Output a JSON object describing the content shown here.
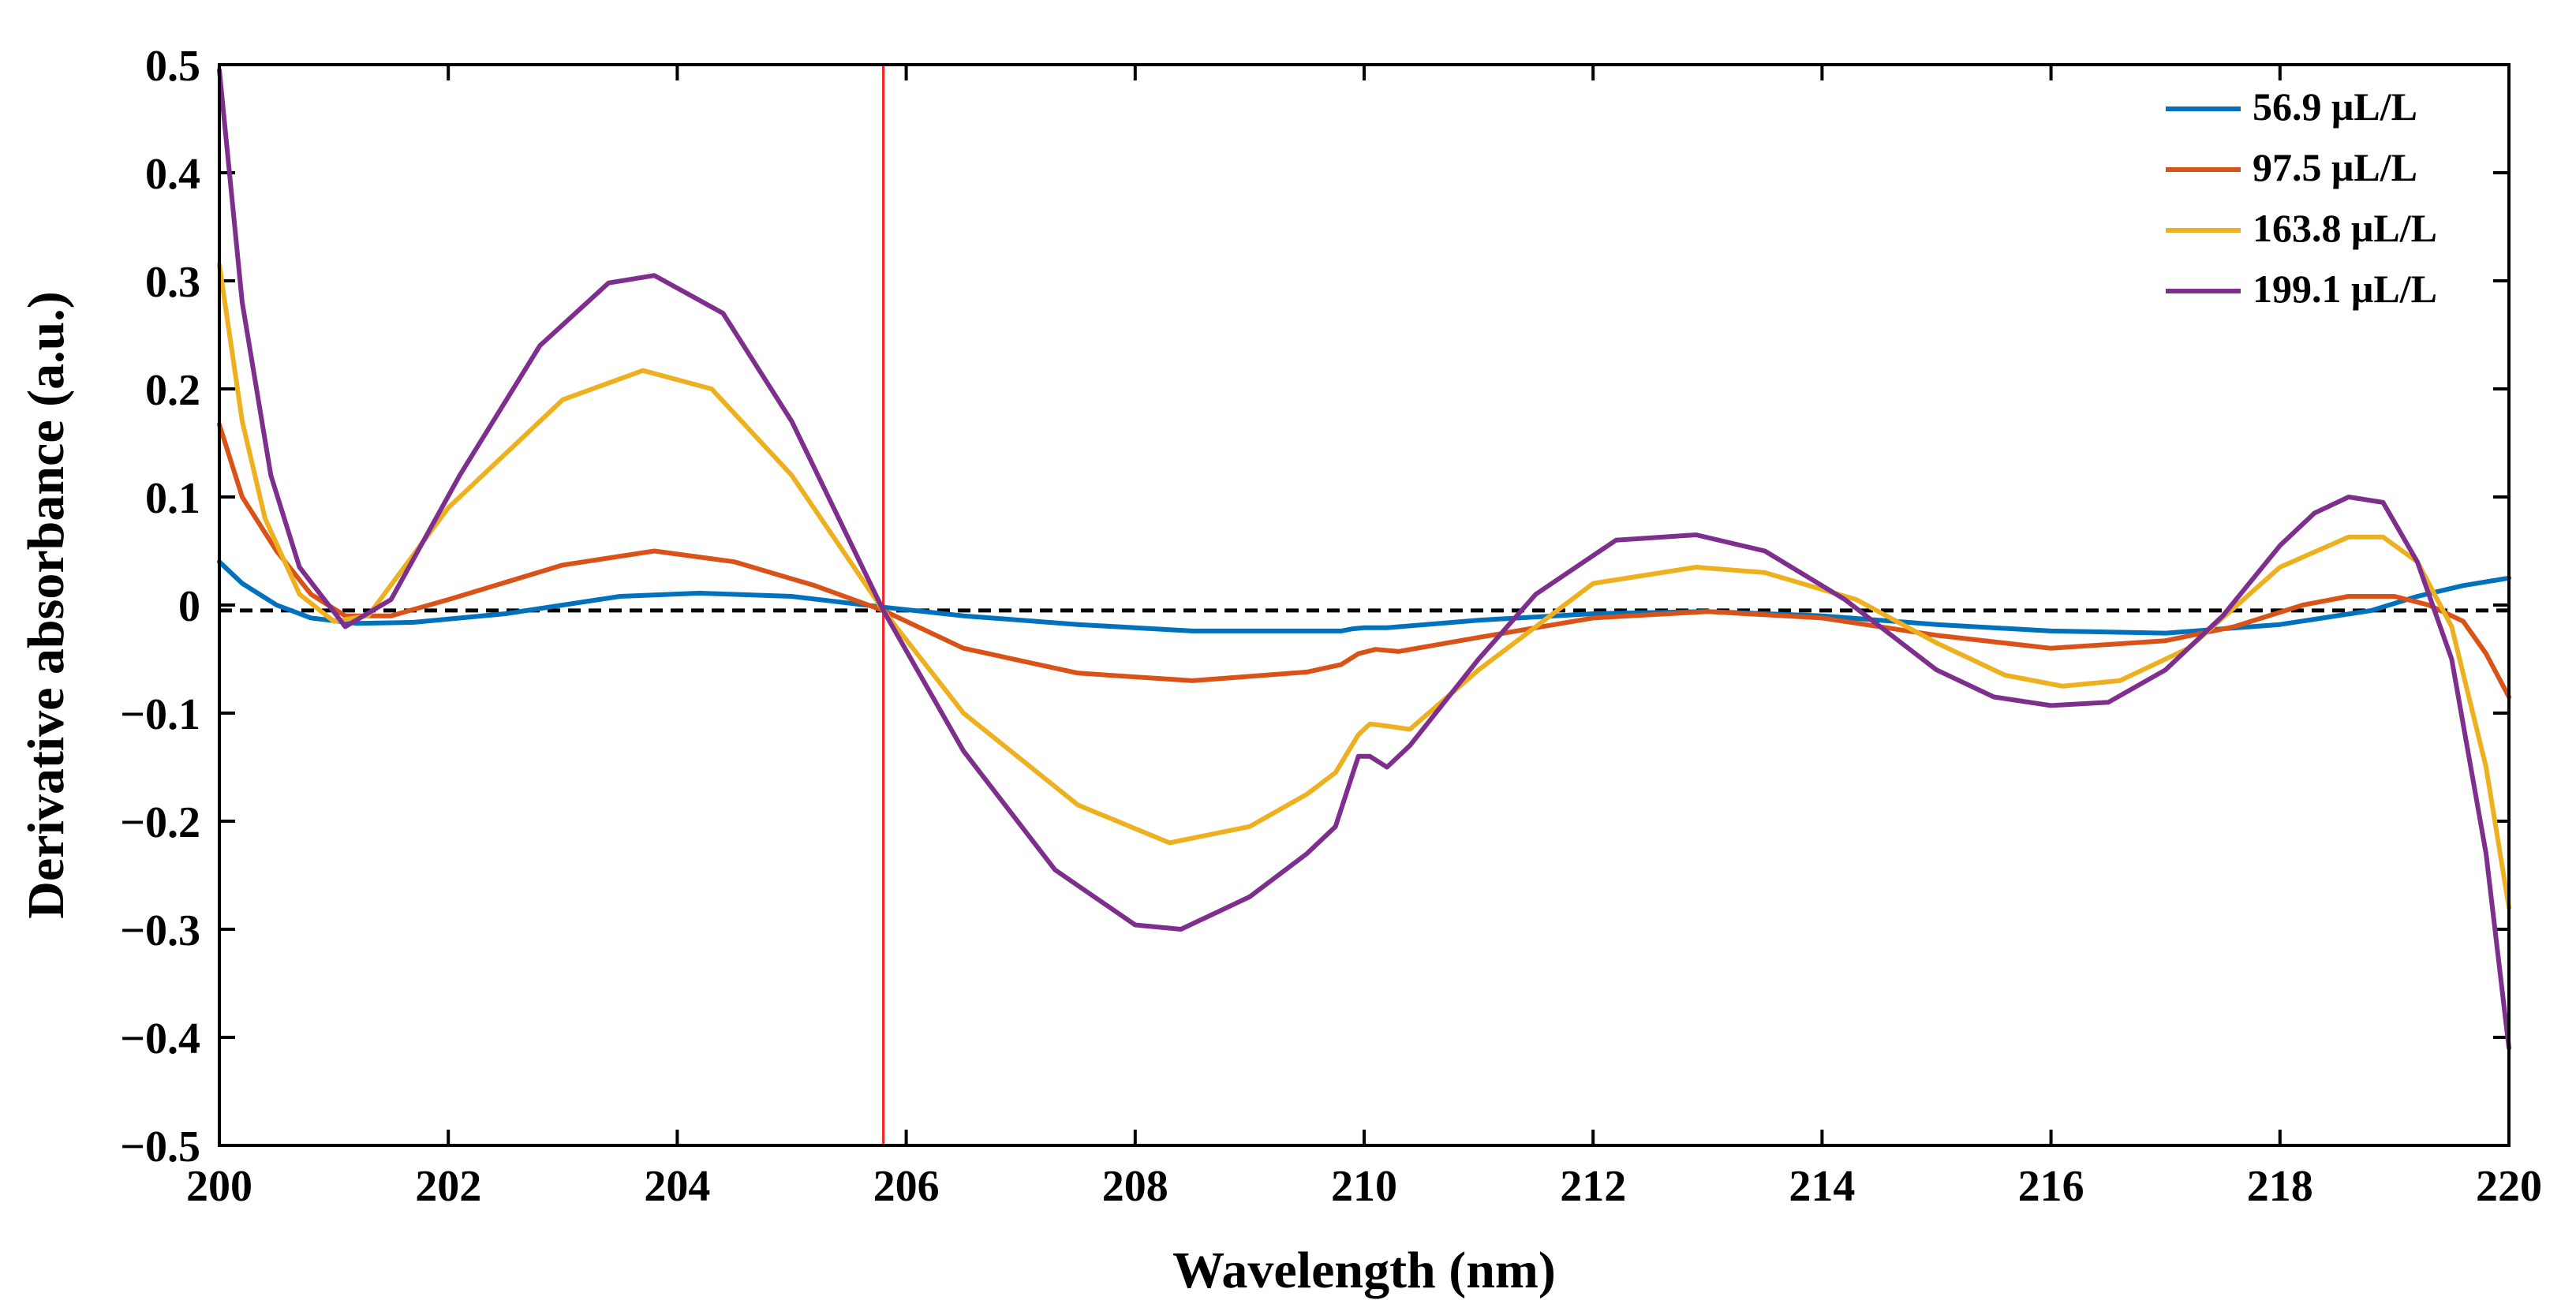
{
  "chart_data": {
    "type": "line",
    "title": "",
    "xlabel": "Wavelength (nm)",
    "ylabel": "Derivative absorbance (a.u.)",
    "xlim": [
      200,
      220
    ],
    "ylim": [
      -0.5,
      0.5
    ],
    "xticks": [
      200,
      202,
      204,
      206,
      208,
      210,
      212,
      214,
      216,
      218,
      220
    ],
    "yticks": [
      -0.5,
      -0.4,
      -0.3,
      -0.2,
      -0.1,
      0,
      0.1,
      0.2,
      0.3,
      0.4,
      0.5
    ],
    "xtick_labels": [
      "200",
      "202",
      "204",
      "206",
      "208",
      "210",
      "212",
      "214",
      "216",
      "218",
      "220"
    ],
    "ytick_labels": [
      "−0.5",
      "−0.4",
      "−0.3",
      "−0.2",
      "−0.1",
      "0",
      "0.1",
      "0.2",
      "0.3",
      "0.4",
      "0.5"
    ],
    "baseline_y": -0.005,
    "vertical_line_x": 205.8,
    "legend_position": "top-right",
    "series": [
      {
        "name": "56.9 μL/L",
        "color": "#0072BD",
        "x": [
          200,
          200.2,
          200.5,
          200.8,
          201.2,
          201.7,
          202.5,
          203.5,
          204.2,
          205,
          205.8,
          206.5,
          207.5,
          208.5,
          209.5,
          209.8,
          209.9,
          210,
          210.2,
          211,
          212,
          213,
          214,
          215,
          216,
          217,
          218,
          218.8,
          219.2,
          219.6,
          220
        ],
        "y": [
          0.04,
          0.02,
          0,
          -0.012,
          -0.017,
          -0.016,
          -0.008,
          0.008,
          0.011,
          0.008,
          -0.002,
          -0.01,
          -0.018,
          -0.024,
          -0.024,
          -0.024,
          -0.022,
          -0.021,
          -0.021,
          -0.014,
          -0.008,
          -0.006,
          -0.01,
          -0.018,
          -0.024,
          -0.026,
          -0.018,
          -0.005,
          0.008,
          0.018,
          0.025
        ]
      },
      {
        "name": "97.5 μL/L",
        "color": "#D95319",
        "x": [
          200,
          200.2,
          200.5,
          200.8,
          201.1,
          201.5,
          202,
          203,
          203.8,
          204.5,
          205.2,
          205.8,
          206.5,
          207.5,
          208.5,
          209.5,
          209.8,
          209.95,
          210.1,
          210.3,
          211,
          212,
          213,
          214,
          215,
          216,
          217,
          217.6,
          218.2,
          218.6,
          219,
          219.3,
          219.6,
          219.8,
          220
        ],
        "y": [
          0.167,
          0.1,
          0.05,
          0.01,
          -0.01,
          -0.01,
          0.005,
          0.037,
          0.05,
          0.04,
          0.018,
          -0.005,
          -0.04,
          -0.063,
          -0.07,
          -0.062,
          -0.055,
          -0.045,
          -0.041,
          -0.043,
          -0.03,
          -0.012,
          -0.006,
          -0.012,
          -0.028,
          -0.04,
          -0.033,
          -0.02,
          0,
          0.008,
          0.008,
          0,
          -0.015,
          -0.045,
          -0.085
        ]
      },
      {
        "name": "163.8 μL/L",
        "color": "#EDB120",
        "x": [
          200,
          200.2,
          200.4,
          200.7,
          201,
          201.3,
          202,
          203,
          203.7,
          204.3,
          205,
          205.8,
          206.5,
          207.5,
          208.3,
          209,
          209.5,
          209.75,
          209.95,
          210.05,
          210.2,
          210.4,
          211,
          212,
          212.9,
          213.5,
          214.3,
          215,
          215.6,
          216.1,
          216.6,
          217.2,
          218,
          218.6,
          218.9,
          219.2,
          219.5,
          219.8,
          220
        ],
        "y": [
          0.315,
          0.17,
          0.08,
          0.01,
          -0.015,
          -0.01,
          0.09,
          0.19,
          0.217,
          0.2,
          0.12,
          -0.005,
          -0.1,
          -0.185,
          -0.22,
          -0.205,
          -0.175,
          -0.155,
          -0.12,
          -0.11,
          -0.112,
          -0.115,
          -0.06,
          0.02,
          0.035,
          0.03,
          0.005,
          -0.035,
          -0.065,
          -0.075,
          -0.07,
          -0.04,
          0.035,
          0.063,
          0.063,
          0.04,
          -0.02,
          -0.15,
          -0.28
        ]
      },
      {
        "name": "199.1 μL/L",
        "color": "#7E2F8E",
        "x": [
          200,
          200.2,
          200.45,
          200.7,
          201.1,
          201.5,
          202.1,
          202.8,
          203.4,
          203.8,
          204.4,
          205,
          205.8,
          206.5,
          207.3,
          208,
          208.4,
          209,
          209.5,
          209.75,
          209.95,
          210.05,
          210.2,
          210.4,
          211,
          211.5,
          212.2,
          212.9,
          213.5,
          214.2,
          215,
          215.5,
          216,
          216.5,
          217,
          217.5,
          218,
          218.3,
          218.6,
          218.9,
          219.2,
          219.5,
          219.8,
          220
        ],
        "y": [
          0.495,
          0.28,
          0.12,
          0.035,
          -0.02,
          0.005,
          0.12,
          0.24,
          0.298,
          0.305,
          0.27,
          0.17,
          -0.005,
          -0.135,
          -0.245,
          -0.296,
          -0.3,
          -0.27,
          -0.23,
          -0.205,
          -0.14,
          -0.14,
          -0.15,
          -0.13,
          -0.05,
          0.01,
          0.06,
          0.065,
          0.05,
          0.005,
          -0.06,
          -0.085,
          -0.093,
          -0.09,
          -0.06,
          -0.01,
          0.055,
          0.085,
          0.1,
          0.095,
          0.04,
          -0.05,
          -0.23,
          -0.41
        ]
      }
    ]
  }
}
